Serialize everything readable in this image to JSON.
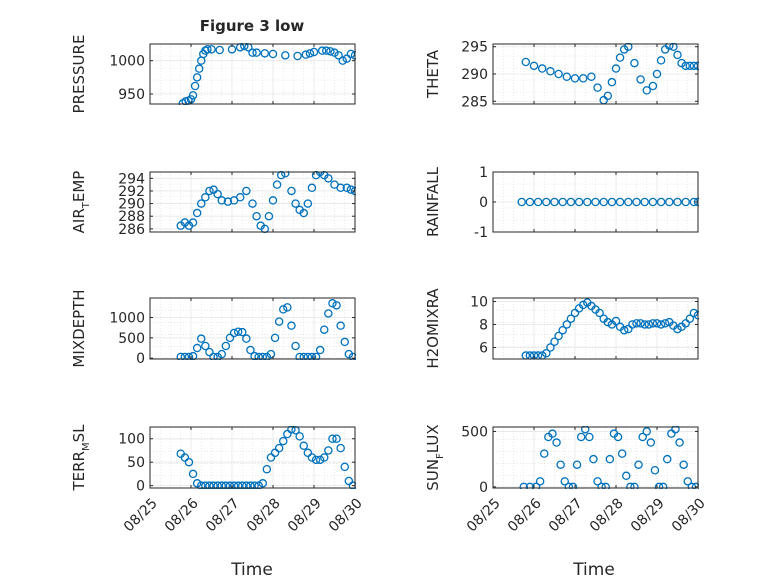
{
  "figure": {
    "title": "Figure 3 low",
    "xlabel": "Time",
    "x_tick_labels": [
      "08/25",
      "08/26",
      "08/27",
      "08/28",
      "08/29",
      "08/30"
    ]
  },
  "colors": {
    "marker": "#0072BD",
    "axis": "#262626",
    "grid": "#d9d9d9"
  },
  "chart_data": [
    {
      "type": "scatter",
      "ylabel": "PRESSURE",
      "xlim": [
        0,
        5
      ],
      "ylim": [
        935,
        1025
      ],
      "yticks": [
        950,
        1000
      ],
      "x": [
        0.8,
        0.87,
        0.94,
        1.0,
        1.05,
        1.1,
        1.15,
        1.2,
        1.25,
        1.3,
        1.35,
        1.4,
        1.5,
        1.7,
        2.0,
        2.2,
        2.3,
        2.4,
        2.5,
        2.6,
        2.8,
        3.0,
        3.3,
        3.6,
        3.8,
        3.9,
        4.0,
        4.2,
        4.3,
        4.4,
        4.5,
        4.6,
        4.7,
        4.8,
        4.9,
        5.0
      ],
      "y": [
        936,
        939,
        940,
        942,
        948,
        962,
        975,
        988,
        1000,
        1010,
        1015,
        1017,
        1017,
        1016,
        1017,
        1020,
        1022,
        1020,
        1012,
        1012,
        1011,
        1010,
        1008,
        1007,
        1009,
        1011,
        1013,
        1015,
        1015,
        1014,
        1012,
        1008,
        1000,
        1003,
        1010,
        1008
      ]
    },
    {
      "type": "scatter",
      "ylabel": "THETA",
      "xlim": [
        0,
        5
      ],
      "ylim": [
        284.5,
        295.5
      ],
      "yticks": [
        285,
        290,
        295
      ],
      "x": [
        0.8,
        1.0,
        1.2,
        1.4,
        1.6,
        1.8,
        2.0,
        2.2,
        2.4,
        2.55,
        2.7,
        2.8,
        2.9,
        3.0,
        3.1,
        3.2,
        3.3,
        3.45,
        3.6,
        3.75,
        3.9,
        4.0,
        4.1,
        4.2,
        4.3,
        4.4,
        4.5,
        4.6,
        4.7,
        4.8,
        4.9,
        5.0
      ],
      "y": [
        292.2,
        291.5,
        291.0,
        290.5,
        290.0,
        289.5,
        289.2,
        289.2,
        289.5,
        287.5,
        285.2,
        286.0,
        288.5,
        291.0,
        293.0,
        294.5,
        295.0,
        292.0,
        289.0,
        287.0,
        287.8,
        290.0,
        292.5,
        294.5,
        295.2,
        295.0,
        293.5,
        292.0,
        291.5,
        291.5,
        291.5,
        291.5
      ]
    },
    {
      "type": "scatter",
      "ylabel": "AIR_TEMP",
      "xlim": [
        0,
        5
      ],
      "ylim": [
        285.5,
        295
      ],
      "yticks": [
        286,
        288,
        290,
        292,
        294
      ],
      "x": [
        0.75,
        0.85,
        0.95,
        1.05,
        1.15,
        1.25,
        1.35,
        1.45,
        1.55,
        1.65,
        1.75,
        1.9,
        2.05,
        2.2,
        2.35,
        2.5,
        2.6,
        2.7,
        2.8,
        2.9,
        3.0,
        3.1,
        3.2,
        3.3,
        3.45,
        3.55,
        3.65,
        3.75,
        3.85,
        3.95,
        4.05,
        4.15,
        4.25,
        4.35,
        4.5,
        4.65,
        4.8,
        4.9,
        5.0
      ],
      "y": [
        286.5,
        287.0,
        286.5,
        287.0,
        288.5,
        290.0,
        291.0,
        292.0,
        292.2,
        291.5,
        290.5,
        290.3,
        290.5,
        291.0,
        292.0,
        290.0,
        288.0,
        286.5,
        286.0,
        288.0,
        290.5,
        293.0,
        294.5,
        294.8,
        292.0,
        290.0,
        289.0,
        288.5,
        290.0,
        292.5,
        294.5,
        295.0,
        294.5,
        294.0,
        293.0,
        292.5,
        292.5,
        292.2,
        292.0
      ]
    },
    {
      "type": "scatter",
      "ylabel": "RAINFALL",
      "xlim": [
        0,
        5
      ],
      "ylim": [
        -1,
        1
      ],
      "yticks": [
        -1,
        0,
        1
      ],
      "x": [
        0.7,
        0.9,
        1.1,
        1.3,
        1.5,
        1.7,
        1.9,
        2.1,
        2.3,
        2.5,
        2.7,
        2.9,
        3.1,
        3.3,
        3.5,
        3.7,
        3.9,
        4.1,
        4.3,
        4.5,
        4.7,
        4.9,
        5.0
      ],
      "y": [
        0,
        0,
        0,
        0,
        0,
        0,
        0,
        0,
        0,
        0,
        0,
        0,
        0,
        0,
        0,
        0,
        0,
        0,
        0,
        0,
        0,
        0,
        0
      ]
    },
    {
      "type": "scatter",
      "ylabel": "MIXDEPTH",
      "xlim": [
        0,
        5
      ],
      "ylim": [
        -20,
        1480
      ],
      "yticks": [
        0,
        500,
        1000
      ],
      "x": [
        0.75,
        0.85,
        0.95,
        1.05,
        1.15,
        1.25,
        1.35,
        1.45,
        1.55,
        1.65,
        1.75,
        1.85,
        1.95,
        2.05,
        2.15,
        2.25,
        2.35,
        2.45,
        2.55,
        2.65,
        2.75,
        2.85,
        2.95,
        3.05,
        3.15,
        3.25,
        3.35,
        3.45,
        3.55,
        3.65,
        3.75,
        3.85,
        3.95,
        4.05,
        4.15,
        4.25,
        4.35,
        4.45,
        4.55,
        4.65,
        4.75,
        4.85,
        4.95
      ],
      "y": [
        30,
        30,
        30,
        50,
        250,
        480,
        300,
        150,
        30,
        30,
        100,
        300,
        500,
        620,
        650,
        640,
        480,
        200,
        50,
        30,
        30,
        30,
        100,
        500,
        900,
        1200,
        1250,
        800,
        300,
        30,
        30,
        30,
        30,
        30,
        200,
        700,
        1100,
        1350,
        1300,
        800,
        400,
        100,
        30
      ]
    },
    {
      "type": "scatter",
      "ylabel": "H2OMIXRA",
      "xlim": [
        0,
        5
      ],
      "ylim": [
        5,
        10.3
      ],
      "yticks": [
        6,
        8,
        10
      ],
      "x": [
        0.8,
        0.9,
        1.0,
        1.1,
        1.2,
        1.3,
        1.4,
        1.5,
        1.6,
        1.7,
        1.8,
        1.9,
        2.0,
        2.1,
        2.2,
        2.3,
        2.4,
        2.5,
        2.6,
        2.7,
        2.8,
        2.9,
        3.0,
        3.1,
        3.2,
        3.3,
        3.4,
        3.5,
        3.6,
        3.7,
        3.8,
        3.9,
        4.0,
        4.1,
        4.2,
        4.3,
        4.4,
        4.5,
        4.6,
        4.7,
        4.8,
        4.9,
        5.0
      ],
      "y": [
        5.3,
        5.3,
        5.3,
        5.3,
        5.3,
        5.5,
        6.0,
        6.5,
        7.0,
        7.5,
        8.0,
        8.5,
        9.0,
        9.4,
        9.7,
        9.9,
        9.6,
        9.3,
        9.0,
        8.5,
        8.2,
        8.0,
        8.3,
        7.8,
        7.5,
        7.6,
        8.0,
        8.1,
        8.1,
        8.0,
        8.0,
        8.1,
        8.1,
        8.0,
        8.1,
        8.2,
        7.9,
        7.6,
        7.8,
        8.1,
        8.5,
        9.0,
        8.8
      ]
    },
    {
      "type": "scatter",
      "ylabel": "TERR_MSL",
      "xlim": [
        0,
        5
      ],
      "ylim": [
        -5,
        125
      ],
      "yticks": [
        0,
        50,
        100
      ],
      "x": [
        0.75,
        0.85,
        0.95,
        1.05,
        1.15,
        1.25,
        1.35,
        1.45,
        1.55,
        1.65,
        1.75,
        1.85,
        1.95,
        2.05,
        2.15,
        2.25,
        2.35,
        2.45,
        2.55,
        2.65,
        2.75,
        2.85,
        2.95,
        3.05,
        3.15,
        3.25,
        3.35,
        3.45,
        3.55,
        3.65,
        3.75,
        3.85,
        3.95,
        4.05,
        4.15,
        4.25,
        4.35,
        4.45,
        4.55,
        4.65,
        4.75,
        4.85,
        4.95
      ],
      "y": [
        68,
        60,
        50,
        25,
        5,
        0,
        0,
        0,
        0,
        0,
        0,
        0,
        0,
        0,
        0,
        0,
        0,
        0,
        0,
        0,
        5,
        35,
        60,
        70,
        80,
        95,
        110,
        120,
        118,
        105,
        85,
        70,
        60,
        55,
        55,
        60,
        75,
        100,
        100,
        80,
        40,
        10,
        0
      ]
    },
    {
      "type": "scatter",
      "ylabel": "SUN_FLUX",
      "xlim": [
        0,
        5
      ],
      "ylim": [
        -10,
        540
      ],
      "yticks": [
        0,
        500
      ],
      "x": [
        0.75,
        0.9,
        1.05,
        1.15,
        1.25,
        1.35,
        1.45,
        1.55,
        1.65,
        1.75,
        1.85,
        1.95,
        2.05,
        2.15,
        2.25,
        2.35,
        2.45,
        2.55,
        2.65,
        2.75,
        2.85,
        2.95,
        3.05,
        3.15,
        3.25,
        3.35,
        3.45,
        3.55,
        3.65,
        3.75,
        3.85,
        3.95,
        4.05,
        4.15,
        4.25,
        4.35,
        4.45,
        4.55,
        4.65,
        4.75,
        4.85,
        4.95
      ],
      "y": [
        0,
        0,
        0,
        50,
        300,
        450,
        480,
        400,
        200,
        50,
        0,
        0,
        200,
        450,
        520,
        450,
        250,
        50,
        0,
        0,
        250,
        480,
        450,
        300,
        100,
        0,
        0,
        200,
        450,
        500,
        400,
        150,
        0,
        0,
        250,
        480,
        520,
        400,
        200,
        50,
        0,
        0
      ]
    }
  ]
}
